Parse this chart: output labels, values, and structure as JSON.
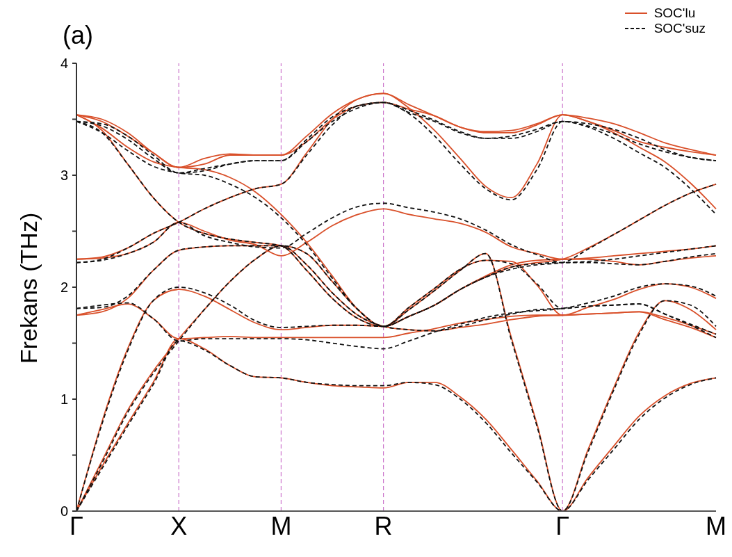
{
  "chart_data": {
    "type": "line",
    "title": "(a)",
    "ylabel": "Frekans (THz)",
    "categories": [
      "Γ",
      null,
      null,
      null,
      "X",
      null,
      null,
      null,
      "M",
      null,
      null,
      null,
      "R",
      null,
      null,
      null,
      null,
      null,
      null,
      "Γ",
      null,
      null,
      null,
      null,
      null,
      "M"
    ],
    "ylim": [
      0,
      4
    ],
    "yticks": [
      0,
      {
        "value": 0.5,
        "label": null
      },
      1,
      {
        "value": 1.5,
        "label": null
      },
      2,
      {
        "value": 2.5,
        "label": null
      },
      3,
      {
        "value": 3.5,
        "label": null
      },
      4
    ],
    "legend": "top right",
    "grid": "x",
    "marker": "none",
    "series": [
      {
        "name": "SOC'lu",
        "color": "#d9502a",
        "line_style": "solid",
        "values": [
          0,
          0.4,
          0.78,
          1.15,
          1.54,
          1.45,
          1.3,
          1.2,
          1.19,
          1.15,
          1.12,
          1.11,
          1.1,
          1.15,
          1.15,
          1.02,
          0.82,
          0.55,
          0.27,
          0,
          0.3,
          0.58,
          0.85,
          1.03,
          1.14,
          1.19
        ]
      },
      {
        "color": "#d9502a",
        "line_style": "solid",
        "values": [
          0,
          0.8,
          1.45,
          1.88,
          1.98,
          1.92,
          1.8,
          1.68,
          1.62,
          1.64,
          1.66,
          1.66,
          1.65,
          1.8,
          1.97,
          2.15,
          2.3,
          1.55,
          0.78,
          0,
          0.55,
          1.1,
          1.6,
          1.88,
          1.8,
          1.62
        ]
      },
      {
        "color": "#d9502a",
        "line_style": "solid",
        "values": [
          0,
          0.45,
          0.9,
          1.25,
          1.54,
          1.8,
          2.05,
          2.25,
          2.37,
          2.2,
          1.95,
          1.75,
          1.65,
          1.62,
          1.61,
          1.64,
          1.67,
          1.71,
          1.74,
          1.75,
          1.76,
          1.77,
          1.78,
          1.71,
          1.64,
          1.55
        ]
      },
      {
        "color": "#d9502a",
        "line_style": "solid",
        "values": [
          1.75,
          1.8,
          1.85,
          1.72,
          1.54,
          1.55,
          1.56,
          1.55,
          1.55,
          1.55,
          1.55,
          1.55,
          1.55,
          1.59,
          1.63,
          1.68,
          1.71,
          1.74,
          1.75,
          1.75,
          1.82,
          1.89,
          1.98,
          2.03,
          2.0,
          1.9
        ]
      },
      {
        "color": "#d9502a",
        "line_style": "solid",
        "values": [
          1.75,
          1.78,
          1.9,
          2.15,
          2.33,
          2.36,
          2.37,
          2.37,
          2.37,
          2.3,
          2.05,
          1.8,
          1.65,
          1.74,
          1.84,
          1.98,
          2.1,
          2.2,
          2.24,
          2.25,
          2.25,
          2.23,
          2.2,
          2.23,
          2.26,
          2.28
        ]
      },
      {
        "color": "#d9502a",
        "line_style": "solid",
        "values": [
          2.25,
          2.26,
          2.3,
          2.4,
          2.58,
          2.5,
          2.42,
          2.38,
          2.28,
          2.4,
          2.55,
          2.65,
          2.7,
          2.65,
          2.61,
          2.57,
          2.49,
          2.36,
          2.3,
          2.25,
          2.26,
          2.28,
          2.3,
          2.32,
          2.34,
          2.37
        ]
      },
      {
        "color": "#d9502a",
        "line_style": "solid",
        "values": [
          2.25,
          2.27,
          2.35,
          2.48,
          2.58,
          2.7,
          2.8,
          2.88,
          2.92,
          3.2,
          3.5,
          3.68,
          3.73,
          3.63,
          3.53,
          3.43,
          3.39,
          3.4,
          3.46,
          3.54,
          3.48,
          3.4,
          3.3,
          3.25,
          3.21,
          3.18
        ]
      },
      {
        "color": "#d9502a",
        "line_style": "solid",
        "values": [
          3.54,
          3.4,
          3.1,
          2.8,
          2.58,
          2.48,
          2.43,
          2.4,
          2.37,
          2.15,
          1.9,
          1.72,
          1.65,
          1.74,
          1.84,
          1.98,
          2.09,
          2.18,
          2.22,
          2.25,
          2.35,
          2.47,
          2.6,
          2.73,
          2.84,
          2.92
        ]
      },
      {
        "color": "#d9502a",
        "line_style": "solid",
        "values": [
          3.54,
          3.42,
          3.25,
          3.12,
          3.07,
          3.05,
          2.98,
          2.85,
          2.65,
          2.4,
          2.1,
          1.8,
          1.65,
          1.82,
          1.99,
          2.16,
          2.24,
          2.23,
          2.02,
          1.75,
          1.76,
          1.77,
          1.78,
          1.73,
          1.66,
          1.58
        ]
      },
      {
        "color": "#d9502a",
        "line_style": "solid",
        "values": [
          3.54,
          3.48,
          3.35,
          3.2,
          3.07,
          3.15,
          3.19,
          3.18,
          3.18,
          3.35,
          3.55,
          3.68,
          3.73,
          3.6,
          3.4,
          3.15,
          2.9,
          2.8,
          3.1,
          3.54,
          3.48,
          3.38,
          3.25,
          3.12,
          2.93,
          2.7
        ]
      },
      {
        "color": "#d9502a",
        "line_style": "solid",
        "values": [
          3.54,
          3.5,
          3.38,
          3.2,
          3.07,
          3.1,
          3.18,
          3.18,
          3.18,
          3.3,
          3.5,
          3.62,
          3.65,
          3.59,
          3.53,
          3.43,
          3.38,
          3.38,
          3.45,
          3.54,
          3.51,
          3.46,
          3.38,
          3.29,
          3.23,
          3.18
        ]
      },
      {
        "name": "SOC'suz",
        "color": "#111111",
        "line_style": "dashed",
        "values": [
          0,
          0.38,
          0.76,
          1.13,
          1.52,
          1.44,
          1.3,
          1.2,
          1.19,
          1.15,
          1.13,
          1.12,
          1.12,
          1.15,
          1.13,
          1.0,
          0.79,
          0.52,
          0.26,
          0,
          0.28,
          0.55,
          0.82,
          1.01,
          1.13,
          1.19
        ]
      },
      {
        "color": "#111111",
        "line_style": "dashed",
        "values": [
          0,
          0.78,
          1.43,
          1.88,
          2.0,
          1.95,
          1.84,
          1.7,
          1.64,
          1.65,
          1.66,
          1.66,
          1.65,
          1.8,
          1.97,
          2.15,
          2.3,
          1.53,
          0.76,
          0,
          0.53,
          1.08,
          1.58,
          1.88,
          1.84,
          1.65
        ]
      },
      {
        "color": "#111111",
        "line_style": "dashed",
        "values": [
          0,
          0.43,
          0.88,
          1.23,
          1.52,
          1.8,
          2.05,
          2.25,
          2.37,
          2.2,
          1.95,
          1.75,
          1.65,
          1.62,
          1.61,
          1.65,
          1.71,
          1.76,
          1.8,
          1.81,
          1.83,
          1.84,
          1.85,
          1.76,
          1.67,
          1.58
        ]
      },
      {
        "color": "#111111",
        "line_style": "dashed",
        "values": [
          1.81,
          1.84,
          1.86,
          1.72,
          1.52,
          1.54,
          1.54,
          1.54,
          1.54,
          1.53,
          1.5,
          1.47,
          1.45,
          1.52,
          1.6,
          1.67,
          1.73,
          1.77,
          1.79,
          1.81,
          1.86,
          1.92,
          2.0,
          2.03,
          2.01,
          1.92
        ]
      },
      {
        "color": "#111111",
        "line_style": "dashed",
        "values": [
          1.81,
          1.82,
          1.92,
          2.15,
          2.33,
          2.36,
          2.37,
          2.37,
          2.37,
          2.3,
          2.05,
          1.8,
          1.65,
          1.74,
          1.84,
          1.98,
          2.09,
          2.18,
          2.21,
          2.22,
          2.22,
          2.21,
          2.2,
          2.23,
          2.27,
          2.3
        ]
      },
      {
        "color": "#111111",
        "line_style": "dashed",
        "values": [
          2.22,
          2.24,
          2.3,
          2.4,
          2.58,
          2.46,
          2.4,
          2.36,
          2.35,
          2.48,
          2.62,
          2.72,
          2.75,
          2.71,
          2.67,
          2.61,
          2.51,
          2.38,
          2.29,
          2.22,
          2.23,
          2.25,
          2.28,
          2.31,
          2.34,
          2.37
        ]
      },
      {
        "color": "#111111",
        "line_style": "dashed",
        "values": [
          2.22,
          2.25,
          2.35,
          2.48,
          2.58,
          2.7,
          2.8,
          2.88,
          2.92,
          3.18,
          3.45,
          3.62,
          3.65,
          3.56,
          3.48,
          3.38,
          3.33,
          3.35,
          3.41,
          3.48,
          3.44,
          3.37,
          3.28,
          3.21,
          3.16,
          3.13
        ]
      },
      {
        "color": "#111111",
        "line_style": "dashed",
        "values": [
          3.48,
          3.38,
          3.1,
          2.8,
          2.58,
          2.48,
          2.43,
          2.4,
          2.37,
          2.15,
          1.9,
          1.72,
          1.65,
          1.74,
          1.84,
          1.98,
          2.09,
          2.16,
          2.2,
          2.22,
          2.34,
          2.47,
          2.6,
          2.73,
          2.84,
          2.92
        ]
      },
      {
        "color": "#111111",
        "line_style": "dashed",
        "values": [
          3.48,
          3.38,
          3.22,
          3.08,
          3.02,
          3.0,
          2.92,
          2.8,
          2.62,
          2.38,
          2.08,
          1.8,
          1.65,
          1.82,
          1.99,
          2.16,
          2.24,
          2.21,
          2.03,
          1.81,
          1.83,
          1.84,
          1.85,
          1.76,
          1.66,
          1.55
        ]
      },
      {
        "color": "#111111",
        "line_style": "dashed",
        "values": [
          3.48,
          3.44,
          3.32,
          3.15,
          3.02,
          3.06,
          3.1,
          3.13,
          3.13,
          3.32,
          3.52,
          3.62,
          3.65,
          3.55,
          3.35,
          3.1,
          2.88,
          2.78,
          3.05,
          3.48,
          3.43,
          3.33,
          3.2,
          3.07,
          2.88,
          2.65
        ]
      },
      {
        "color": "#111111",
        "line_style": "dashed",
        "values": [
          3.48,
          3.46,
          3.35,
          3.18,
          3.02,
          3.04,
          3.1,
          3.13,
          3.13,
          3.3,
          3.48,
          3.6,
          3.65,
          3.58,
          3.49,
          3.39,
          3.33,
          3.33,
          3.39,
          3.48,
          3.46,
          3.41,
          3.33,
          3.23,
          3.16,
          3.13
        ]
      }
    ]
  }
}
